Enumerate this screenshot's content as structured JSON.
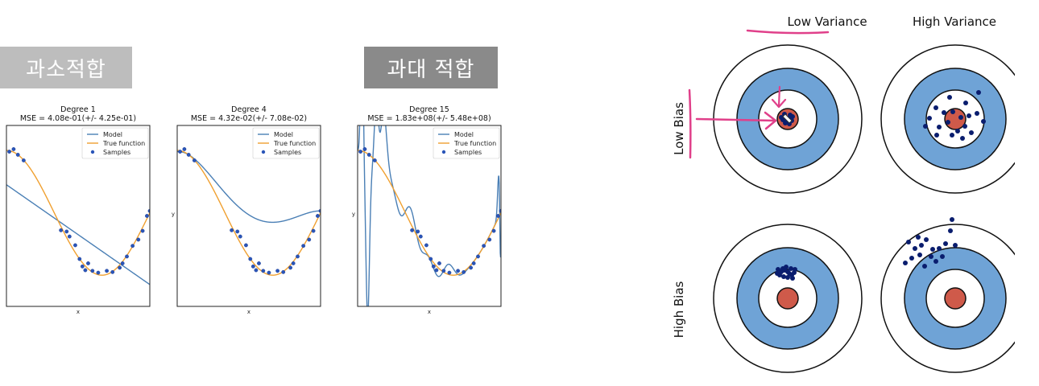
{
  "labels": {
    "underfit": "과소적합",
    "overfit": "과대 적합"
  },
  "colors": {
    "model": "#4a7fb5",
    "true_function": "#f0a030",
    "samples": "#2a55b8",
    "target_ring": "#6fa3d6",
    "bullseye": "#cf5a4a",
    "dots": "#0a1d6e",
    "annotation": "#e0408a"
  },
  "chart_data": [
    {
      "type": "line",
      "title": "Degree 1",
      "subtitle": "MSE = 4.08e-01(+/- 4.25e-01)",
      "xlabel": "x",
      "ylabel": "",
      "xlim": [
        0,
        1
      ],
      "ylim": [
        -1.5,
        1.4
      ],
      "legend": [
        "Model",
        "True function",
        "Samples"
      ],
      "legend_position": "top-right",
      "samples": [
        {
          "x": 0.02,
          "y": 0.98
        },
        {
          "x": 0.05,
          "y": 1.02
        },
        {
          "x": 0.08,
          "y": 0.93
        },
        {
          "x": 0.12,
          "y": 0.84
        },
        {
          "x": 0.38,
          "y": -0.28
        },
        {
          "x": 0.42,
          "y": -0.3
        },
        {
          "x": 0.44,
          "y": -0.38
        },
        {
          "x": 0.48,
          "y": -0.52
        },
        {
          "x": 0.51,
          "y": -0.74
        },
        {
          "x": 0.53,
          "y": -0.86
        },
        {
          "x": 0.55,
          "y": -0.92
        },
        {
          "x": 0.57,
          "y": -0.81
        },
        {
          "x": 0.6,
          "y": -0.93
        },
        {
          "x": 0.64,
          "y": -0.96
        },
        {
          "x": 0.7,
          "y": -0.93
        },
        {
          "x": 0.74,
          "y": -0.95
        },
        {
          "x": 0.79,
          "y": -0.88
        },
        {
          "x": 0.81,
          "y": -0.81
        },
        {
          "x": 0.84,
          "y": -0.7
        },
        {
          "x": 0.88,
          "y": -0.53
        },
        {
          "x": 0.92,
          "y": -0.43
        },
        {
          "x": 0.95,
          "y": -0.29
        },
        {
          "x": 0.98,
          "y": -0.05
        },
        {
          "x": 1.0,
          "y": 0.03
        }
      ]
    },
    {
      "type": "line",
      "title": "Degree 4",
      "subtitle": "MSE = 4.32e-02(+/- 7.08e-02)",
      "xlabel": "x",
      "ylabel": "y",
      "xlim": [
        0,
        1
      ],
      "ylim": [
        -1.5,
        1.4
      ],
      "legend": [
        "Model",
        "True function",
        "Samples"
      ],
      "legend_position": "top-right",
      "samples": [
        {
          "x": 0.02,
          "y": 0.98
        },
        {
          "x": 0.05,
          "y": 1.02
        },
        {
          "x": 0.08,
          "y": 0.93
        },
        {
          "x": 0.12,
          "y": 0.84
        },
        {
          "x": 0.38,
          "y": -0.28
        },
        {
          "x": 0.42,
          "y": -0.3
        },
        {
          "x": 0.44,
          "y": -0.38
        },
        {
          "x": 0.48,
          "y": -0.52
        },
        {
          "x": 0.51,
          "y": -0.74
        },
        {
          "x": 0.53,
          "y": -0.86
        },
        {
          "x": 0.55,
          "y": -0.92
        },
        {
          "x": 0.57,
          "y": -0.81
        },
        {
          "x": 0.6,
          "y": -0.93
        },
        {
          "x": 0.64,
          "y": -0.96
        },
        {
          "x": 0.7,
          "y": -0.93
        },
        {
          "x": 0.74,
          "y": -0.95
        },
        {
          "x": 0.79,
          "y": -0.88
        },
        {
          "x": 0.81,
          "y": -0.81
        },
        {
          "x": 0.84,
          "y": -0.7
        },
        {
          "x": 0.88,
          "y": -0.53
        },
        {
          "x": 0.92,
          "y": -0.43
        },
        {
          "x": 0.95,
          "y": -0.29
        },
        {
          "x": 0.98,
          "y": -0.05
        },
        {
          "x": 1.0,
          "y": 0.03
        }
      ]
    },
    {
      "type": "line",
      "title": "Degree 15",
      "subtitle": "MSE = 1.83e+08(+/- 5.48e+08)",
      "xlabel": "x",
      "ylabel": "y",
      "xlim": [
        0,
        1
      ],
      "ylim": [
        -1.5,
        1.4
      ],
      "legend": [
        "Model",
        "True function",
        "Samples"
      ],
      "legend_position": "top-right",
      "samples": [
        {
          "x": 0.02,
          "y": 0.98
        },
        {
          "x": 0.05,
          "y": 1.02
        },
        {
          "x": 0.08,
          "y": 0.93
        },
        {
          "x": 0.12,
          "y": 0.84
        },
        {
          "x": 0.38,
          "y": -0.28
        },
        {
          "x": 0.42,
          "y": -0.3
        },
        {
          "x": 0.44,
          "y": -0.38
        },
        {
          "x": 0.48,
          "y": -0.52
        },
        {
          "x": 0.51,
          "y": -0.74
        },
        {
          "x": 0.53,
          "y": -0.86
        },
        {
          "x": 0.55,
          "y": -0.92
        },
        {
          "x": 0.57,
          "y": -0.81
        },
        {
          "x": 0.6,
          "y": -0.93
        },
        {
          "x": 0.64,
          "y": -0.96
        },
        {
          "x": 0.7,
          "y": -0.93
        },
        {
          "x": 0.74,
          "y": -0.95
        },
        {
          "x": 0.79,
          "y": -0.88
        },
        {
          "x": 0.81,
          "y": -0.81
        },
        {
          "x": 0.84,
          "y": -0.7
        },
        {
          "x": 0.88,
          "y": -0.53
        },
        {
          "x": 0.92,
          "y": -0.43
        },
        {
          "x": 0.95,
          "y": -0.29
        },
        {
          "x": 0.98,
          "y": -0.05
        },
        {
          "x": 1.0,
          "y": 0.03
        }
      ]
    }
  ],
  "targets": {
    "column_labels": [
      "Low Variance",
      "High Variance"
    ],
    "row_labels": [
      "Low Bias",
      "High Bias"
    ]
  }
}
